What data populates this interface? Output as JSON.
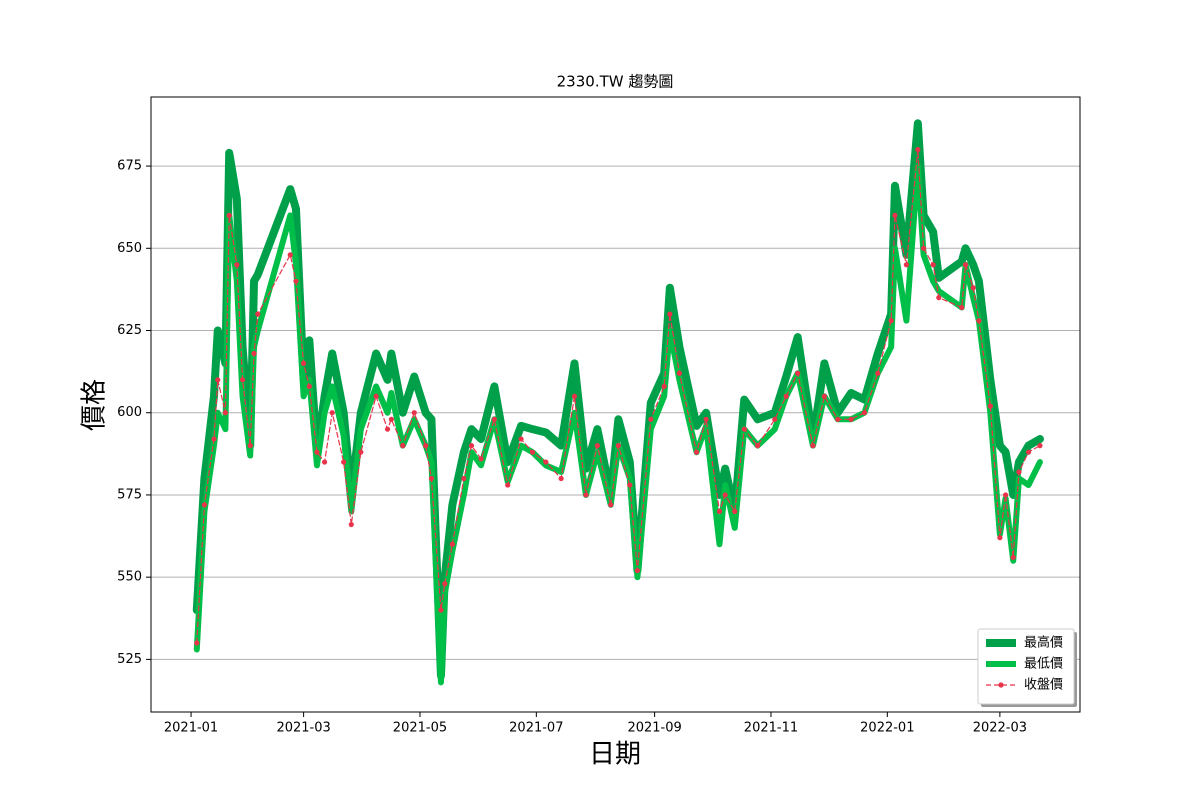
{
  "chart_data": {
    "type": "line",
    "title": "2330.TW 趨勢圖",
    "x_label": "日期",
    "y_label": "價格",
    "x": [
      "2021-01-04",
      "2021-01-08",
      "2021-01-13",
      "2021-01-15",
      "2021-01-19",
      "2021-01-21",
      "2021-01-25",
      "2021-01-28",
      "2021-02-01",
      "2021-02-03",
      "2021-02-05",
      "2021-02-22",
      "2021-02-25",
      "2021-03-01",
      "2021-03-04",
      "2021-03-08",
      "2021-03-12",
      "2021-03-16",
      "2021-03-22",
      "2021-03-26",
      "2021-03-31",
      "2021-04-08",
      "2021-04-14",
      "2021-04-16",
      "2021-04-22",
      "2021-04-28",
      "2021-05-04",
      "2021-05-07",
      "2021-05-12",
      "2021-05-14",
      "2021-05-18",
      "2021-05-24",
      "2021-05-28",
      "2021-06-02",
      "2021-06-09",
      "2021-06-16",
      "2021-06-23",
      "2021-06-29",
      "2021-07-06",
      "2021-07-14",
      "2021-07-21",
      "2021-07-27",
      "2021-08-02",
      "2021-08-09",
      "2021-08-13",
      "2021-08-19",
      "2021-08-23",
      "2021-08-30",
      "2021-09-06",
      "2021-09-09",
      "2021-09-14",
      "2021-09-23",
      "2021-09-28",
      "2021-10-05",
      "2021-10-08",
      "2021-10-13",
      "2021-10-18",
      "2021-10-25",
      "2021-11-03",
      "2021-11-09",
      "2021-11-15",
      "2021-11-23",
      "2021-11-29",
      "2021-12-06",
      "2021-12-13",
      "2021-12-20",
      "2021-12-27",
      "2022-01-03",
      "2022-01-05",
      "2022-01-11",
      "2022-01-17",
      "2022-01-20",
      "2022-01-25",
      "2022-01-28",
      "2022-02-09",
      "2022-02-11",
      "2022-02-15",
      "2022-02-18",
      "2022-02-24",
      "2022-03-01",
      "2022-03-04",
      "2022-03-08",
      "2022-03-11",
      "2022-03-16",
      "2022-03-22"
    ],
    "series": [
      {
        "name": "最高價",
        "color": "#00a04a",
        "width": 8,
        "style": "solid",
        "values": [
          540,
          580,
          605,
          625,
          615,
          679,
          665,
          620,
          590,
          640,
          642,
          668,
          662,
          610,
          622,
          588,
          605,
          618,
          600,
          575,
          600,
          618,
          610,
          618,
          600,
          611,
          600,
          598,
          520,
          550,
          572,
          588,
          595,
          592,
          608,
          585,
          596,
          595,
          594,
          590,
          615,
          583,
          595,
          575,
          598,
          585,
          552,
          603,
          612,
          638,
          620,
          596,
          600,
          575,
          583,
          570,
          604,
          598,
          600,
          611,
          623,
          592,
          615,
          600,
          606,
          604,
          618,
          630,
          669,
          648,
          688,
          660,
          655,
          641,
          646,
          650,
          645,
          640,
          610,
          590,
          588,
          575,
          585,
          590,
          592
        ]
      },
      {
        "name": "最低價",
        "color": "#00bf48",
        "width": 6,
        "style": "solid",
        "values": [
          528,
          570,
          590,
          600,
          595,
          660,
          640,
          605,
          587,
          620,
          625,
          660,
          645,
          605,
          610,
          584,
          600,
          608,
          593,
          570,
          595,
          608,
          600,
          606,
          590,
          598,
          590,
          585,
          518,
          545,
          558,
          575,
          588,
          584,
          598,
          579,
          590,
          588,
          584,
          582,
          600,
          575,
          588,
          572,
          590,
          580,
          550,
          595,
          605,
          625,
          610,
          588,
          596,
          560,
          578,
          565,
          595,
          590,
          595,
          605,
          612,
          590,
          605,
          598,
          598,
          600,
          612,
          620,
          650,
          628,
          675,
          648,
          640,
          637,
          632,
          645,
          635,
          628,
          600,
          563,
          574,
          555,
          580,
          578,
          585
        ]
      },
      {
        "name": "收盤價",
        "color": "#e8344a",
        "width": 1.2,
        "style": "dashed",
        "marker": true,
        "values": [
          530,
          572,
          592,
          610,
          600,
          660,
          645,
          610,
          590,
          618,
          630,
          648,
          640,
          615,
          608,
          588,
          585,
          600,
          585,
          566,
          588,
          605,
          595,
          598,
          590,
          600,
          590,
          580,
          540,
          548,
          560,
          580,
          590,
          586,
          598,
          578,
          592,
          588,
          585,
          580,
          605,
          575,
          590,
          572,
          590,
          578,
          552,
          598,
          608,
          630,
          612,
          588,
          598,
          570,
          575,
          570,
          595,
          590,
          598,
          605,
          612,
          590,
          605,
          598,
          598,
          600,
          612,
          628,
          660,
          645,
          680,
          650,
          645,
          635,
          632,
          645,
          638,
          628,
          602,
          562,
          575,
          556,
          582,
          588,
          590
        ]
      }
    ],
    "xlim": [
      "2020-12-11",
      "2022-04-12"
    ],
    "xticks": [
      {
        "value": "2021-01-01",
        "label": "2021-01"
      },
      {
        "value": "2021-03-01",
        "label": "2021-03"
      },
      {
        "value": "2021-05-01",
        "label": "2021-05"
      },
      {
        "value": "2021-07-01",
        "label": "2021-07"
      },
      {
        "value": "2021-09-01",
        "label": "2021-09"
      },
      {
        "value": "2021-11-01",
        "label": "2021-11"
      },
      {
        "value": "2022-01-01",
        "label": "2022-01"
      },
      {
        "value": "2022-03-01",
        "label": "2022-03"
      }
    ],
    "ylim": [
      509,
      696
    ],
    "yticks": [
      525,
      550,
      575,
      600,
      625,
      650,
      675
    ],
    "grid": "y",
    "legend": "lower right"
  }
}
